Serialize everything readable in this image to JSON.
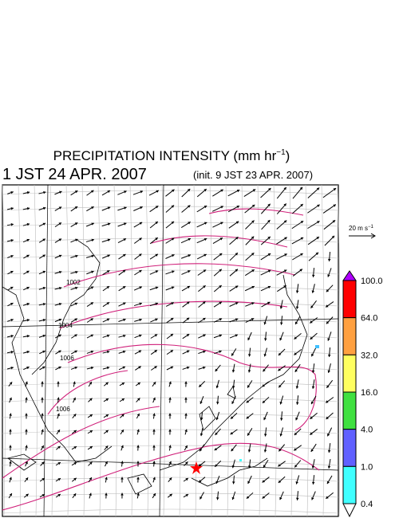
{
  "title": {
    "text": "PRECIPITATION INTENSITY (mm hr",
    "sup": "−1",
    "close": ")"
  },
  "valid_time": "1 JST 24 APR. 2007",
  "init_time": "(init. 9 JST 23 APR. 2007)",
  "scale": {
    "text": "20 m s",
    "sup": "−1"
  },
  "colorbar": {
    "labels": [
      "100.0",
      "64.0",
      "32.0",
      "16.0",
      "4.0",
      "1.0",
      "0.4"
    ],
    "colors": [
      "#b000ff",
      "#ff0000",
      "#ffa040",
      "#ffff60",
      "#40e040",
      "#6060ff",
      "#40ffff",
      "#ffffff"
    ]
  },
  "contour_labels": [
    "1002",
    "1004",
    "1006",
    "1006"
  ]
}
